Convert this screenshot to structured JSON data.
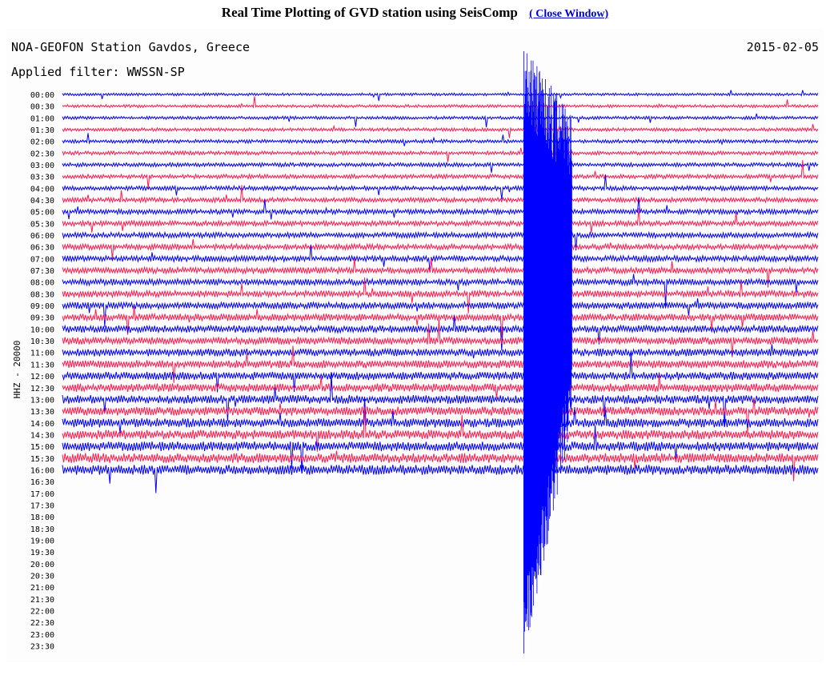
{
  "header": {
    "title": "Real Time Plotting of GVD station using SeisComp",
    "close_link": "( Close Window)"
  },
  "plot": {
    "station_title": "NOA-GEOFON Station Gavdos, Greece",
    "date": "2015-02-05",
    "filter_label": "Applied filter: WWSSN-SP",
    "channel_label": "HHZ - 20000"
  },
  "colors": {
    "trace_a": "#0000ff",
    "trace_b": "#ff1a4d",
    "background": "#fdfdfd"
  },
  "chart_data": {
    "type": "line",
    "title": "NOA-GEOFON Station Gavdos, Greece",
    "ylabel": "HHZ - 20000",
    "y_tick_labels": [
      "00:00",
      "00:30",
      "01:00",
      "01:30",
      "02:00",
      "02:30",
      "03:00",
      "03:30",
      "04:00",
      "04:30",
      "05:00",
      "05:30",
      "06:00",
      "06:30",
      "07:00",
      "07:30",
      "08:00",
      "08:30",
      "09:00",
      "09:30",
      "10:00",
      "10:30",
      "11:00",
      "11:30",
      "12:00",
      "12:30",
      "13:00",
      "13:30",
      "14:00",
      "14:30",
      "15:00",
      "15:30",
      "16:00",
      "16:30",
      "17:00",
      "17:30",
      "18:00",
      "18:30",
      "19:00",
      "19:30",
      "20:00",
      "20:30",
      "21:00",
      "21:30",
      "22:00",
      "22:30",
      "23:00",
      "23:30"
    ],
    "recorded_until": "16:00",
    "series_colors_alternating": [
      "#0000ff",
      "#ff1a4d"
    ],
    "major_event_x_fraction": 0.61,
    "grid": false
  }
}
